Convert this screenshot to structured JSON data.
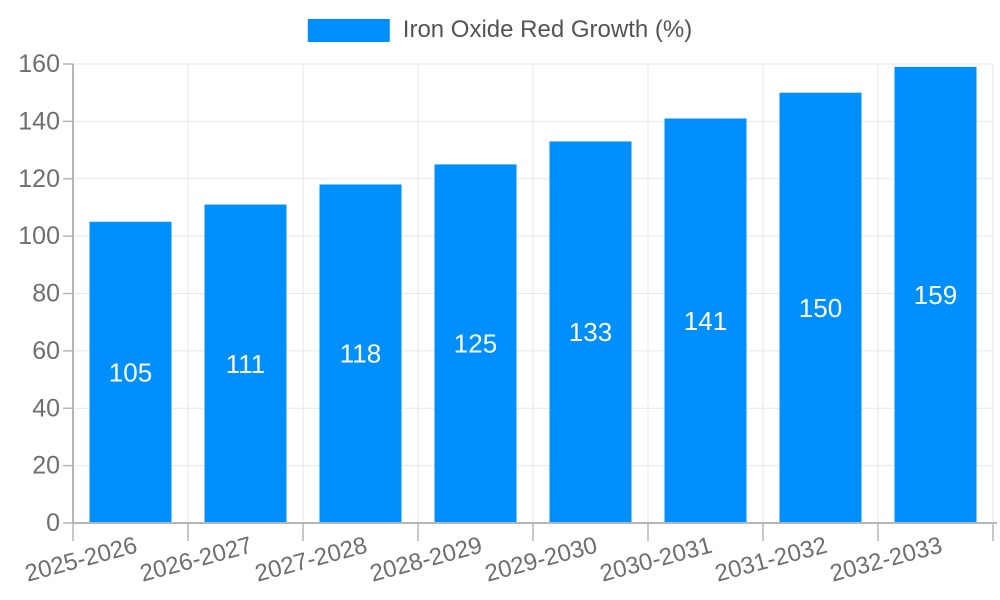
{
  "chart_data": {
    "type": "bar",
    "title": "",
    "legend": {
      "label": "Iron Oxide Red Growth (%)",
      "position": "top"
    },
    "categories": [
      "2025-2026",
      "2026-2027",
      "2027-2028",
      "2028-2029",
      "2029-2030",
      "2030-2031",
      "2031-2032",
      "2032-2033"
    ],
    "series": [
      {
        "name": "Iron Oxide Red Growth (%)",
        "values": [
          105,
          111,
          118,
          125,
          133,
          141,
          150,
          159
        ]
      }
    ],
    "xlabel": "",
    "ylabel": "",
    "ylim": [
      0,
      160
    ],
    "yticks": [
      0,
      20,
      40,
      60,
      80,
      100,
      120,
      140,
      160
    ],
    "grid": true,
    "value_labels": "inside-center",
    "x_label_rotation_deg": -15,
    "colors": {
      "bar": "#008FFB",
      "grid_line": "#e7e7e7",
      "axis_line": "#b6b6b6",
      "tick_label": "#6e6e6e",
      "legend_label": "#545454",
      "value_label": "#ffffff",
      "background": "#ffffff"
    }
  }
}
